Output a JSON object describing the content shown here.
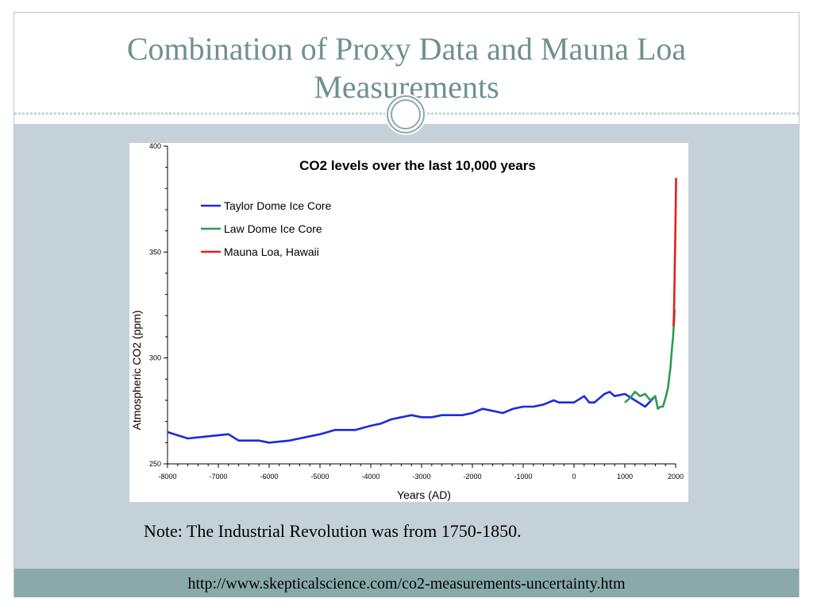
{
  "slide": {
    "title_line1": "Combination of Proxy Data and Mauna Loa",
    "title_line2": "Measurements",
    "note": "Note: The Industrial Revolution was from 1750-1850.",
    "source_url": "http://www.skepticalscience.com/co2-measurements-uncertainty.htm"
  },
  "colors": {
    "title": "#6f9090",
    "body_background": "#c5d1d8",
    "footer_background": "#8aa9a9",
    "taylor": "#1c2bd9",
    "law": "#2e9a55",
    "mauna": "#e02020"
  },
  "chart_data": {
    "type": "line",
    "title": "CO2 levels over the last 10,000 years",
    "xlabel": "Years (AD)",
    "ylabel": "Atmospheric CO2 (ppm)",
    "xlim": [
      -8000,
      2000
    ],
    "ylim": [
      250,
      400
    ],
    "x_ticks": [
      "-8000",
      "-7000",
      "-6000",
      "-5000",
      "-4000",
      "-3000",
      "-2000",
      "-1000",
      "0",
      "1000",
      "2000"
    ],
    "y_ticks": [
      "250",
      "300",
      "350",
      "400"
    ],
    "legend_position": "top-left",
    "grid": false,
    "series": [
      {
        "name": "Taylor Dome Ice Core",
        "color": "#1c2bd9",
        "x": [
          -8000,
          -7600,
          -7200,
          -6800,
          -6600,
          -6200,
          -6000,
          -5600,
          -5400,
          -5000,
          -4700,
          -4300,
          -4000,
          -3800,
          -3600,
          -3400,
          -3200,
          -3000,
          -2800,
          -2600,
          -2400,
          -2200,
          -2000,
          -1800,
          -1600,
          -1400,
          -1200,
          -1000,
          -800,
          -600,
          -400,
          -300,
          -100,
          0,
          200,
          300,
          400,
          600,
          700,
          800,
          1000,
          1200,
          1400,
          1600
        ],
        "y": [
          265,
          262,
          263,
          264,
          261,
          261,
          260,
          261,
          262,
          264,
          266,
          266,
          268,
          269,
          271,
          272,
          273,
          272,
          272,
          273,
          273,
          273,
          274,
          276,
          275,
          274,
          276,
          277,
          277,
          278,
          280,
          279,
          279,
          279,
          282,
          279,
          279,
          283,
          284,
          282,
          283,
          280,
          277,
          282
        ]
      },
      {
        "name": "Law Dome Ice Core",
        "color": "#2e9a55",
        "x": [
          1000,
          1100,
          1200,
          1300,
          1400,
          1500,
          1550,
          1600,
          1650,
          1700,
          1750,
          1800,
          1850,
          1900,
          1930,
          1950,
          1970,
          1980
        ],
        "y": [
          279,
          281,
          284,
          282,
          283,
          280,
          281,
          282,
          276,
          277,
          277,
          281,
          286,
          296,
          305,
          310,
          318,
          323
        ]
      },
      {
        "name": "Mauna Loa, Hawaii",
        "color": "#e02020",
        "x": [
          1958,
          1965,
          1970,
          1975,
          1980,
          1985,
          1990,
          1995,
          2000,
          2005,
          2010
        ],
        "y": [
          315,
          320,
          325,
          331,
          338,
          346,
          354,
          361,
          369,
          377,
          385
        ]
      }
    ]
  }
}
